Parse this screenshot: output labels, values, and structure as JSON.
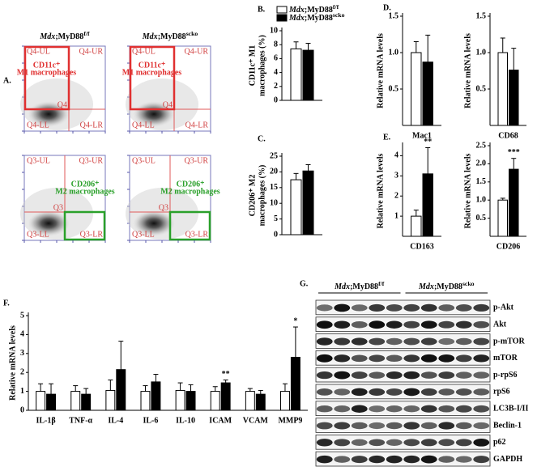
{
  "chart_data": [
    {
      "type": "bar",
      "panel": "B.",
      "ylabel": [
        "CD11c⁺ M1",
        "macrophages (%)"
      ],
      "categories": [
        null
      ],
      "ylim": [
        0,
        10
      ],
      "yticks": [
        0,
        2,
        4,
        6,
        8,
        10
      ],
      "series": [
        {
          "name": [
            "Mdx",
            ";MyD88",
            "f/f"
          ],
          "color": "#ffffff",
          "values": [
            7.4
          ],
          "errors": [
            1.0
          ]
        },
        {
          "name": [
            "Mdx",
            ";MyD88",
            "scko"
          ],
          "color": "#000000",
          "values": [
            7.2
          ],
          "errors": [
            1.0
          ]
        }
      ]
    },
    {
      "type": "bar",
      "panel": "C.",
      "ylabel": [
        "CD206⁺ M2",
        "macrophages (%)"
      ],
      "categories": [
        null
      ],
      "ylim": [
        0,
        25
      ],
      "yticks": [
        0,
        5,
        10,
        15,
        20,
        25
      ],
      "series": [
        {
          "color": "#ffffff",
          "values": [
            17.5
          ],
          "errors": [
            2.0
          ]
        },
        {
          "color": "#000000",
          "values": [
            20.3
          ],
          "errors": [
            2.0
          ]
        }
      ]
    },
    {
      "type": "bar",
      "panel": "D.",
      "ylabel": [
        "Relative mRNA levels"
      ],
      "categories": [
        "Mac1"
      ],
      "ylim": [
        0,
        1.5
      ],
      "yticks": [
        {
          "value": 0.5,
          "label": "0.5"
        },
        {
          "value": 1,
          "label": "1.0"
        },
        {
          "value": 1.5,
          "label": "1.5"
        }
      ],
      "series": [
        {
          "color": "#ffffff",
          "values": [
            1.0
          ],
          "errors": [
            0.15
          ]
        },
        {
          "color": "#000000",
          "values": [
            0.87
          ],
          "errors": [
            0.37
          ]
        }
      ]
    },
    {
      "type": "bar",
      "ylabel": [
        "Relative mRNA levels"
      ],
      "categories": [
        "CD68"
      ],
      "ylim": [
        0,
        1.5
      ],
      "yticks": [
        {
          "value": 0.5,
          "label": "0.5"
        },
        {
          "value": 1,
          "label": "1.0"
        },
        {
          "value": 1.5,
          "label": "1.5"
        }
      ],
      "series": [
        {
          "color": "#ffffff",
          "values": [
            1.0
          ],
          "errors": [
            0.2
          ]
        },
        {
          "color": "#000000",
          "values": [
            0.76
          ],
          "errors": [
            0.3
          ]
        }
      ]
    },
    {
      "type": "bar",
      "panel": "E.",
      "ylabel": [
        "Relative mRNA levels"
      ],
      "categories": [
        "CD163"
      ],
      "ylim": [
        0,
        4.5
      ],
      "yticks": [
        1,
        2,
        3,
        4
      ],
      "series": [
        {
          "color": "#ffffff",
          "values": [
            1.0
          ],
          "errors": [
            0.3
          ]
        },
        {
          "color": "#000000",
          "values": [
            3.1
          ],
          "errors": [
            1.3
          ],
          "significance": [
            "**"
          ]
        }
      ]
    },
    {
      "type": "bar",
      "ylabel": [
        "Relative mRNA levels"
      ],
      "categories": [
        "CD206"
      ],
      "ylim": [
        0,
        2.5
      ],
      "yticks": [
        {
          "value": 0.5,
          "label": "0.5"
        },
        {
          "value": 1,
          "label": "1.0"
        },
        {
          "value": 1.5,
          "label": "1.5"
        },
        {
          "value": 2,
          "label": "2.0"
        },
        {
          "value": 2.5,
          "label": "2.5"
        }
      ],
      "series": [
        {
          "color": "#ffffff",
          "values": [
            1.0
          ],
          "errors": [
            0.05
          ]
        },
        {
          "color": "#000000",
          "values": [
            1.85
          ],
          "errors": [
            0.3
          ],
          "significance": [
            "***"
          ]
        }
      ]
    },
    {
      "type": "bar",
      "panel": "F.",
      "ylabel": [
        "Relative mRNA levels"
      ],
      "categories": [
        "IL-1β",
        "TNF-α",
        "IL-4",
        "IL-6",
        "IL-10",
        "ICAM",
        "VCAM",
        "MMP9"
      ],
      "ylim": [
        0,
        5
      ],
      "yticks": [
        0,
        1,
        2,
        3,
        4,
        5
      ],
      "series": [
        {
          "color": "#ffffff",
          "values": [
            1.0,
            1.0,
            1.05,
            1.0,
            1.05,
            1.0,
            1.0,
            1.0
          ],
          "errors": [
            0.4,
            0.3,
            0.55,
            0.3,
            0.4,
            0.25,
            0.15,
            0.4
          ]
        },
        {
          "color": "#000000",
          "values": [
            0.85,
            0.85,
            2.15,
            1.5,
            1.0,
            1.45,
            0.85,
            2.8
          ],
          "errors": [
            0.55,
            0.3,
            1.5,
            0.4,
            0.35,
            0.15,
            0.2,
            1.6
          ],
          "significance": [
            null,
            null,
            null,
            null,
            null,
            "**",
            null,
            "*"
          ]
        }
      ]
    }
  ],
  "flow": {
    "panel": "A.",
    "column_titles": [
      [
        "Mdx",
        ";MyD88",
        "f/f"
      ],
      [
        "Mdx",
        ";MyD88",
        "scko"
      ]
    ],
    "plots": [
      {
        "quadrants": [
          "Q4-UL",
          "Q4-UR",
          "Q4-LL",
          "Q4-LR"
        ],
        "gate": "Q4",
        "population": [
          "CD11c⁺",
          "M1 macrophages"
        ]
      },
      {
        "quadrants": [
          "Q4-UL",
          "Q4-UR",
          "Q4-LL",
          "Q4-LR"
        ],
        "gate": "Q4",
        "population": [
          "CD11c⁺",
          "M1 macrophages"
        ]
      },
      {
        "quadrants": [
          "Q3-UL",
          "Q3-UR",
          "Q3-LL",
          "Q3-LR"
        ],
        "gate": "Q3",
        "population": [
          "CD206⁺",
          "M2 macrophages"
        ]
      },
      {
        "quadrants": [
          "Q3-UL",
          "Q3-UR",
          "Q3-LL",
          "Q3-LR"
        ],
        "gate": "Q3",
        "population": [
          "CD206⁺",
          "M2 macrophages"
        ]
      }
    ]
  },
  "blot": {
    "panel": "G.",
    "groups": [
      [
        "Mdx",
        ";MyD88",
        "f/f"
      ],
      [
        "Mdx",
        ";MyD88",
        "scko"
      ]
    ],
    "rows": [
      "p-Akt",
      "Akt",
      "p-mTOR",
      "mTOR",
      "p-rpS6",
      "rpS6",
      "LC3B-I/II",
      "Beclin-1",
      "p62",
      "GAPDH"
    ]
  }
}
